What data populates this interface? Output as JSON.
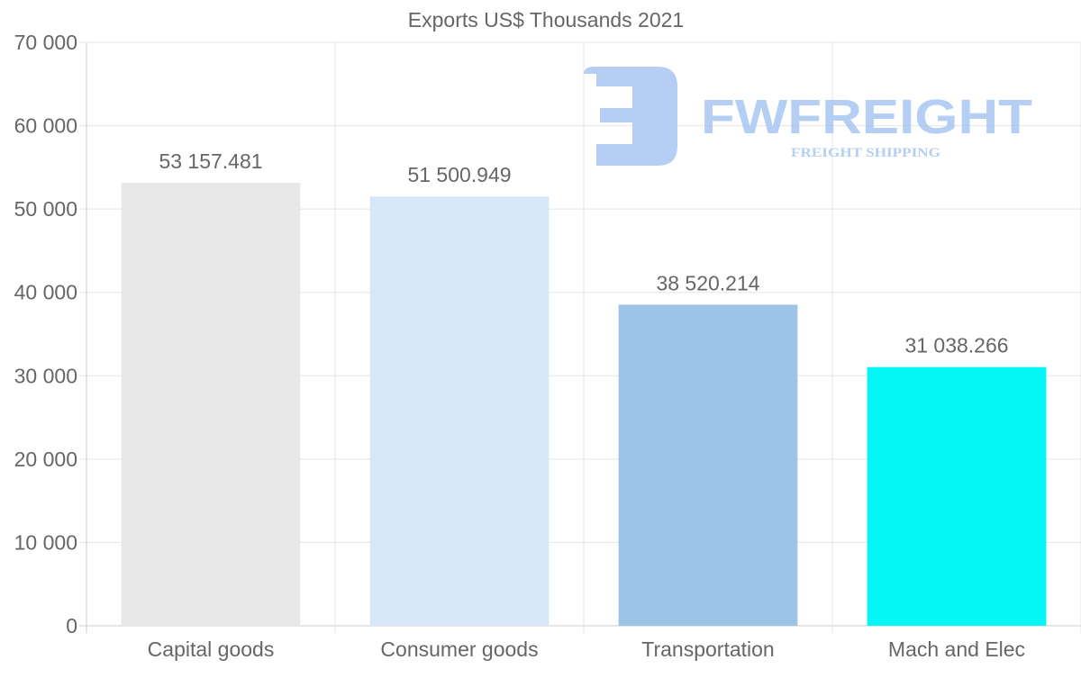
{
  "chart_data": {
    "type": "bar",
    "title": "Exports US$ Thousands 2021",
    "xlabel": "",
    "ylabel": "",
    "categories": [
      "Capital goods",
      "Consumer goods",
      "Transportation",
      "Mach and Elec"
    ],
    "values": [
      53157.481,
      51500.949,
      38520.214,
      31038.266
    ],
    "value_labels": [
      "53 157.481",
      "51 500.949",
      "38 520.214",
      "31 038.266"
    ],
    "colors": [
      "#e8e8e8",
      "#d6e7f8",
      "#9bc4e6",
      "#04f6f6"
    ],
    "ylim": [
      0,
      70000
    ],
    "yticks": [
      0,
      10000,
      20000,
      30000,
      40000,
      50000,
      60000,
      70000
    ],
    "ytick_labels": [
      "0",
      "10 000",
      "20 000",
      "30 000",
      "40 000",
      "50 000",
      "60 000",
      "70 000"
    ],
    "grid": true,
    "legend": "none"
  },
  "watermark": {
    "brand": "FWFREIGHT",
    "tagline": "FREIGHT SHIPPING",
    "color": "#a9c6f2"
  }
}
